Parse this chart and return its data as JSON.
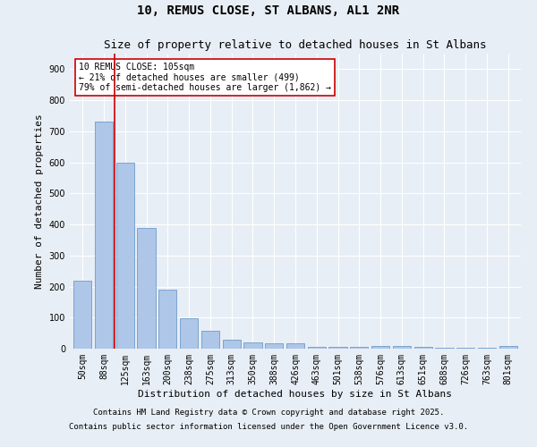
{
  "title1": "10, REMUS CLOSE, ST ALBANS, AL1 2NR",
  "title2": "Size of property relative to detached houses in St Albans",
  "xlabel": "Distribution of detached houses by size in St Albans",
  "ylabel": "Number of detached properties",
  "categories": [
    "50sqm",
    "88sqm",
    "125sqm",
    "163sqm",
    "200sqm",
    "238sqm",
    "275sqm",
    "313sqm",
    "350sqm",
    "388sqm",
    "426sqm",
    "463sqm",
    "501sqm",
    "538sqm",
    "576sqm",
    "613sqm",
    "651sqm",
    "688sqm",
    "726sqm",
    "763sqm",
    "801sqm"
  ],
  "values": [
    220,
    730,
    600,
    390,
    190,
    98,
    57,
    28,
    20,
    17,
    17,
    5,
    5,
    5,
    10,
    10,
    5,
    2,
    2,
    2,
    8
  ],
  "bar_color": "#aec6e8",
  "bar_edge_color": "#5a8fc2",
  "vline_x": 1.5,
  "vline_color": "#cc0000",
  "annotation_line1": "10 REMUS CLOSE: 105sqm",
  "annotation_line2": "← 21% of detached houses are smaller (499)",
  "annotation_line3": "79% of semi-detached houses are larger (1,862) →",
  "annotation_box_color": "#ffffff",
  "annotation_box_edge": "#cc0000",
  "ylim": [
    0,
    950
  ],
  "yticks": [
    0,
    100,
    200,
    300,
    400,
    500,
    600,
    700,
    800,
    900
  ],
  "background_color": "#e8eef5",
  "grid_color": "#ffffff",
  "footer1": "Contains HM Land Registry data © Crown copyright and database right 2025.",
  "footer2": "Contains public sector information licensed under the Open Government Licence v3.0.",
  "title_fontsize": 10,
  "subtitle_fontsize": 9,
  "tick_fontsize": 7,
  "label_fontsize": 8,
  "annotation_fontsize": 7,
  "footer_fontsize": 6.5
}
